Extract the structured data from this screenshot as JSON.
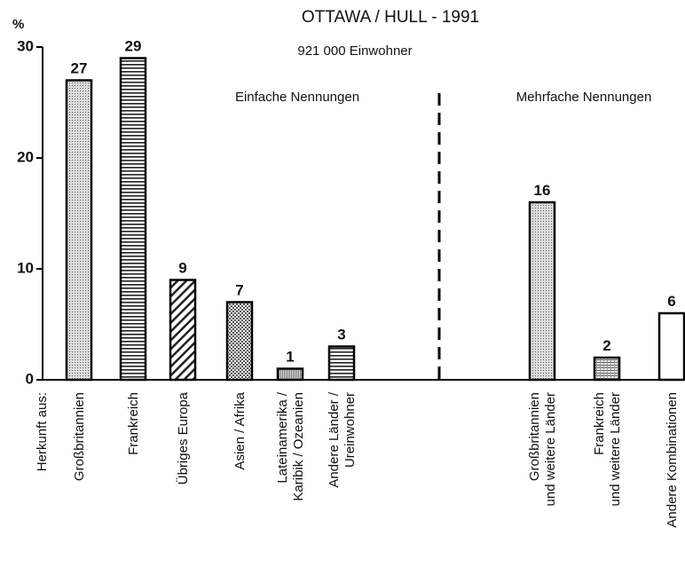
{
  "chart_data": {
    "type": "bar",
    "title": "OTTAWA / HULL - 1991",
    "subtitle": "921 000 Einwohner",
    "y_label": "%",
    "x_label": "Herkunft aus:",
    "annotations": [
      "Einfache Nennungen",
      "Mehrfache Nennungen"
    ],
    "categories": [
      "Großbritannien",
      "Frankreich",
      "Übriges Europa",
      "Asien / Afrika",
      "Lateinamerika /\nKaribik / Ozeanien",
      "Andere Länder /\nUreinwohner",
      "Großbritannien\nund weitere Länder",
      "Frankreich\nund weitere Länder",
      "Andere Kombinationen"
    ],
    "values": [
      27,
      29,
      9,
      7,
      1,
      3,
      16,
      2,
      6
    ],
    "color": "#000000",
    "ylim": [
      0,
      30
    ],
    "yticks": [
      0,
      10,
      20,
      30
    ],
    "grid": false
  }
}
